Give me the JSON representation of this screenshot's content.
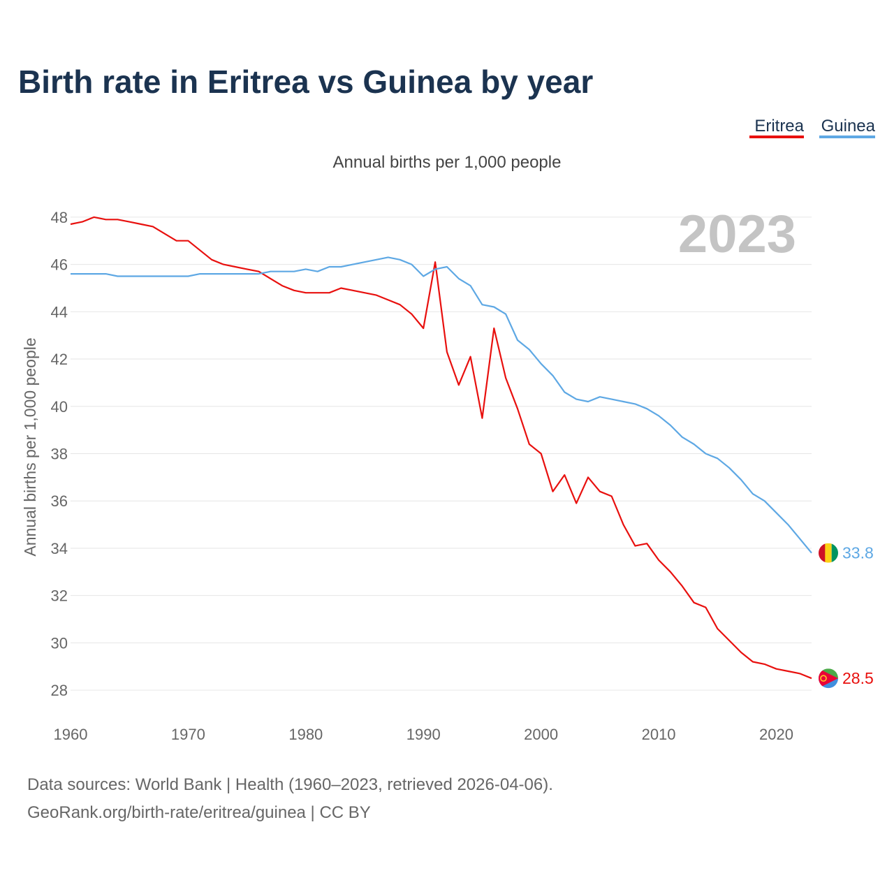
{
  "chart_data": {
    "type": "line",
    "title": "Birth rate in Eritrea vs Guinea by year",
    "subtitle": "Annual births per 1,000 people",
    "ylabel": "Annual births per 1,000 people",
    "xlabel": "",
    "current_year_label": "2023",
    "xlim": [
      1960,
      2023
    ],
    "ylim": [
      27,
      49
    ],
    "yticks": [
      28,
      30,
      32,
      34,
      36,
      38,
      40,
      42,
      44,
      46,
      48
    ],
    "xticks": [
      1960,
      1970,
      1980,
      1990,
      2000,
      2010,
      2020
    ],
    "legend_position": "top-right",
    "x": [
      1960,
      1961,
      1962,
      1963,
      1964,
      1965,
      1966,
      1967,
      1968,
      1969,
      1970,
      1971,
      1972,
      1973,
      1974,
      1975,
      1976,
      1977,
      1978,
      1979,
      1980,
      1981,
      1982,
      1983,
      1984,
      1985,
      1986,
      1987,
      1988,
      1989,
      1990,
      1991,
      1992,
      1993,
      1994,
      1995,
      1996,
      1997,
      1998,
      1999,
      2000,
      2001,
      2002,
      2003,
      2004,
      2005,
      2006,
      2007,
      2008,
      2009,
      2010,
      2011,
      2012,
      2013,
      2014,
      2015,
      2016,
      2017,
      2018,
      2019,
      2020,
      2021,
      2022,
      2023
    ],
    "series": [
      {
        "name": "Eritrea",
        "color": "#e8100e",
        "end_label": "28.5",
        "flag": "eritrea-flag",
        "values": [
          47.7,
          47.8,
          48.0,
          47.9,
          47.9,
          47.8,
          47.7,
          47.6,
          47.3,
          47.0,
          47.0,
          46.6,
          46.2,
          46.0,
          45.9,
          45.8,
          45.7,
          45.4,
          45.1,
          44.9,
          44.8,
          44.8,
          44.8,
          45.0,
          44.9,
          44.8,
          44.7,
          44.5,
          44.3,
          43.9,
          43.3,
          46.1,
          42.3,
          40.9,
          42.1,
          39.5,
          43.3,
          41.2,
          39.9,
          38.4,
          38.0,
          36.4,
          37.1,
          35.9,
          37.0,
          36.4,
          36.2,
          35.0,
          34.1,
          34.2,
          33.5,
          33.0,
          32.4,
          31.7,
          31.5,
          30.6,
          30.1,
          29.6,
          29.2,
          29.1,
          28.9,
          28.8,
          28.7,
          28.5
        ]
      },
      {
        "name": "Guinea",
        "color": "#5ea8e4",
        "end_label": "33.8",
        "flag": "guinea-flag",
        "values": [
          45.6,
          45.6,
          45.6,
          45.6,
          45.5,
          45.5,
          45.5,
          45.5,
          45.5,
          45.5,
          45.5,
          45.6,
          45.6,
          45.6,
          45.6,
          45.6,
          45.6,
          45.7,
          45.7,
          45.7,
          45.8,
          45.7,
          45.9,
          45.9,
          46.0,
          46.1,
          46.2,
          46.3,
          46.2,
          46.0,
          45.5,
          45.8,
          45.9,
          45.4,
          45.1,
          44.3,
          44.2,
          43.9,
          42.8,
          42.4,
          41.8,
          41.3,
          40.6,
          40.3,
          40.2,
          40.4,
          40.3,
          40.2,
          40.1,
          39.9,
          39.6,
          39.2,
          38.7,
          38.4,
          38.0,
          37.8,
          37.4,
          36.9,
          36.3,
          36.0,
          35.5,
          35.0,
          34.4,
          33.8
        ]
      }
    ]
  },
  "footer": {
    "sources": "Data sources: World Bank | Health (1960–2023, retrieved 2026-04-06).",
    "credit": "GeoRank.org/birth-rate/eritrea/guinea | CC BY"
  }
}
